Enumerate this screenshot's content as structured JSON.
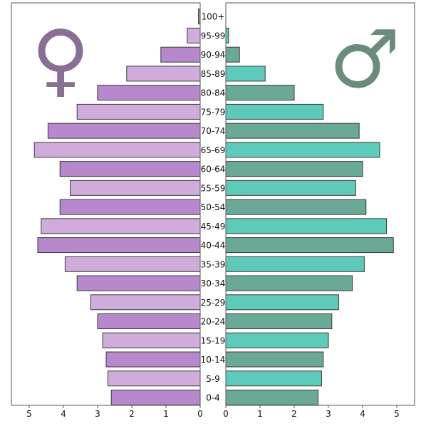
{
  "chart_data": {
    "type": "bar",
    "orientation": "horizontal-population-pyramid",
    "categories": [
      "0-4",
      "5-9",
      "10-14",
      "15-19",
      "20-24",
      "25-29",
      "30-34",
      "35-39",
      "40-44",
      "45-49",
      "50-54",
      "55-59",
      "60-64",
      "65-69",
      "70-74",
      "75-79",
      "80-84",
      "85-89",
      "90-94",
      "95-99",
      "100+"
    ],
    "series": [
      {
        "symbol": "♀",
        "side": "left",
        "colors": [
          "#b888cc",
          "#cfacdc"
        ],
        "values": [
          2.6,
          2.7,
          2.75,
          2.85,
          3.0,
          3.2,
          3.6,
          3.95,
          4.75,
          4.65,
          4.1,
          3.8,
          4.1,
          4.85,
          4.45,
          3.6,
          3.0,
          2.15,
          1.15,
          0.38,
          0.05
        ]
      },
      {
        "symbol": "♂",
        "side": "right",
        "colors": [
          "#6aa898",
          "#5ecbba"
        ],
        "values": [
          2.7,
          2.8,
          2.85,
          3.0,
          3.1,
          3.3,
          3.7,
          4.05,
          4.9,
          4.7,
          4.1,
          3.8,
          4.0,
          4.5,
          3.9,
          2.85,
          2.0,
          1.15,
          0.4,
          0.08,
          0.0
        ]
      }
    ],
    "xlim": [
      0,
      5.5
    ],
    "ticks": [
      0,
      1,
      2,
      3,
      4,
      5
    ],
    "title": "",
    "xlabel": "",
    "ylabel": "",
    "grid": false,
    "symbol_colors": {
      "female": "#8a6f94",
      "male": "#6b8c7a"
    }
  }
}
